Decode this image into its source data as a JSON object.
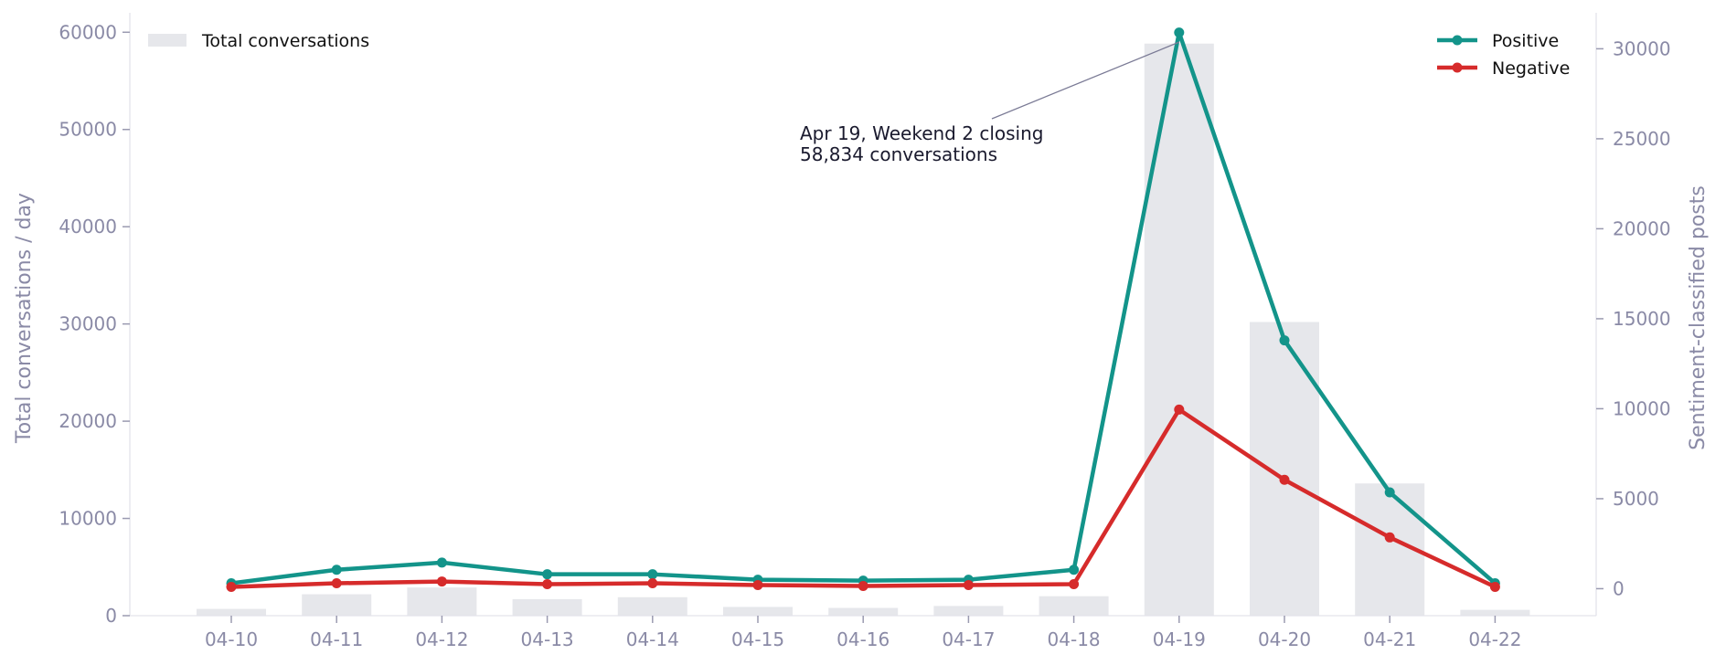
{
  "chart_data": {
    "type": "bar+line",
    "categories": [
      "04-10",
      "04-11",
      "04-12",
      "04-13",
      "04-14",
      "04-15",
      "04-16",
      "04-17",
      "04-18",
      "04-19",
      "04-20",
      "04-21",
      "04-22"
    ],
    "bars": {
      "name": "Total conversations",
      "axis": "left",
      "values": [
        700,
        2200,
        2900,
        1700,
        1900,
        900,
        800,
        1000,
        2000,
        58834,
        30200,
        13600,
        600
      ],
      "color": "#e6e7eb"
    },
    "series": [
      {
        "name": "Positive",
        "axis": "right",
        "color": "#13948a",
        "values": [
          300,
          1050,
          1450,
          800,
          800,
          500,
          450,
          500,
          1050,
          30900,
          13800,
          5350,
          300
        ]
      },
      {
        "name": "Negative",
        "axis": "right",
        "color": "#d62b2b",
        "values": [
          100,
          300,
          400,
          250,
          300,
          200,
          150,
          200,
          250,
          9950,
          6050,
          2850,
          100
        ]
      }
    ],
    "left_axis": {
      "label": "Total conversations / day",
      "ylim": [
        0,
        62000
      ],
      "ticks": [
        "0",
        "10000",
        "20000",
        "30000",
        "40000",
        "50000",
        "60000"
      ]
    },
    "right_axis": {
      "label": "Sentiment-classified posts",
      "ylim": [
        -1500,
        32000
      ],
      "ticks": [
        "0",
        "5000",
        "10000",
        "15000",
        "20000",
        "25000",
        "30000"
      ]
    },
    "annotation": {
      "line1": "Apr 19, Weekend 2 closing",
      "line2": "58,834 conversations",
      "target_index": 9
    },
    "legend_left": {
      "placement": "top-left",
      "label": "Total conversations"
    },
    "legend_right": {
      "placement": "top-right",
      "labels": [
        "Positive",
        "Negative"
      ]
    },
    "grid": false
  }
}
